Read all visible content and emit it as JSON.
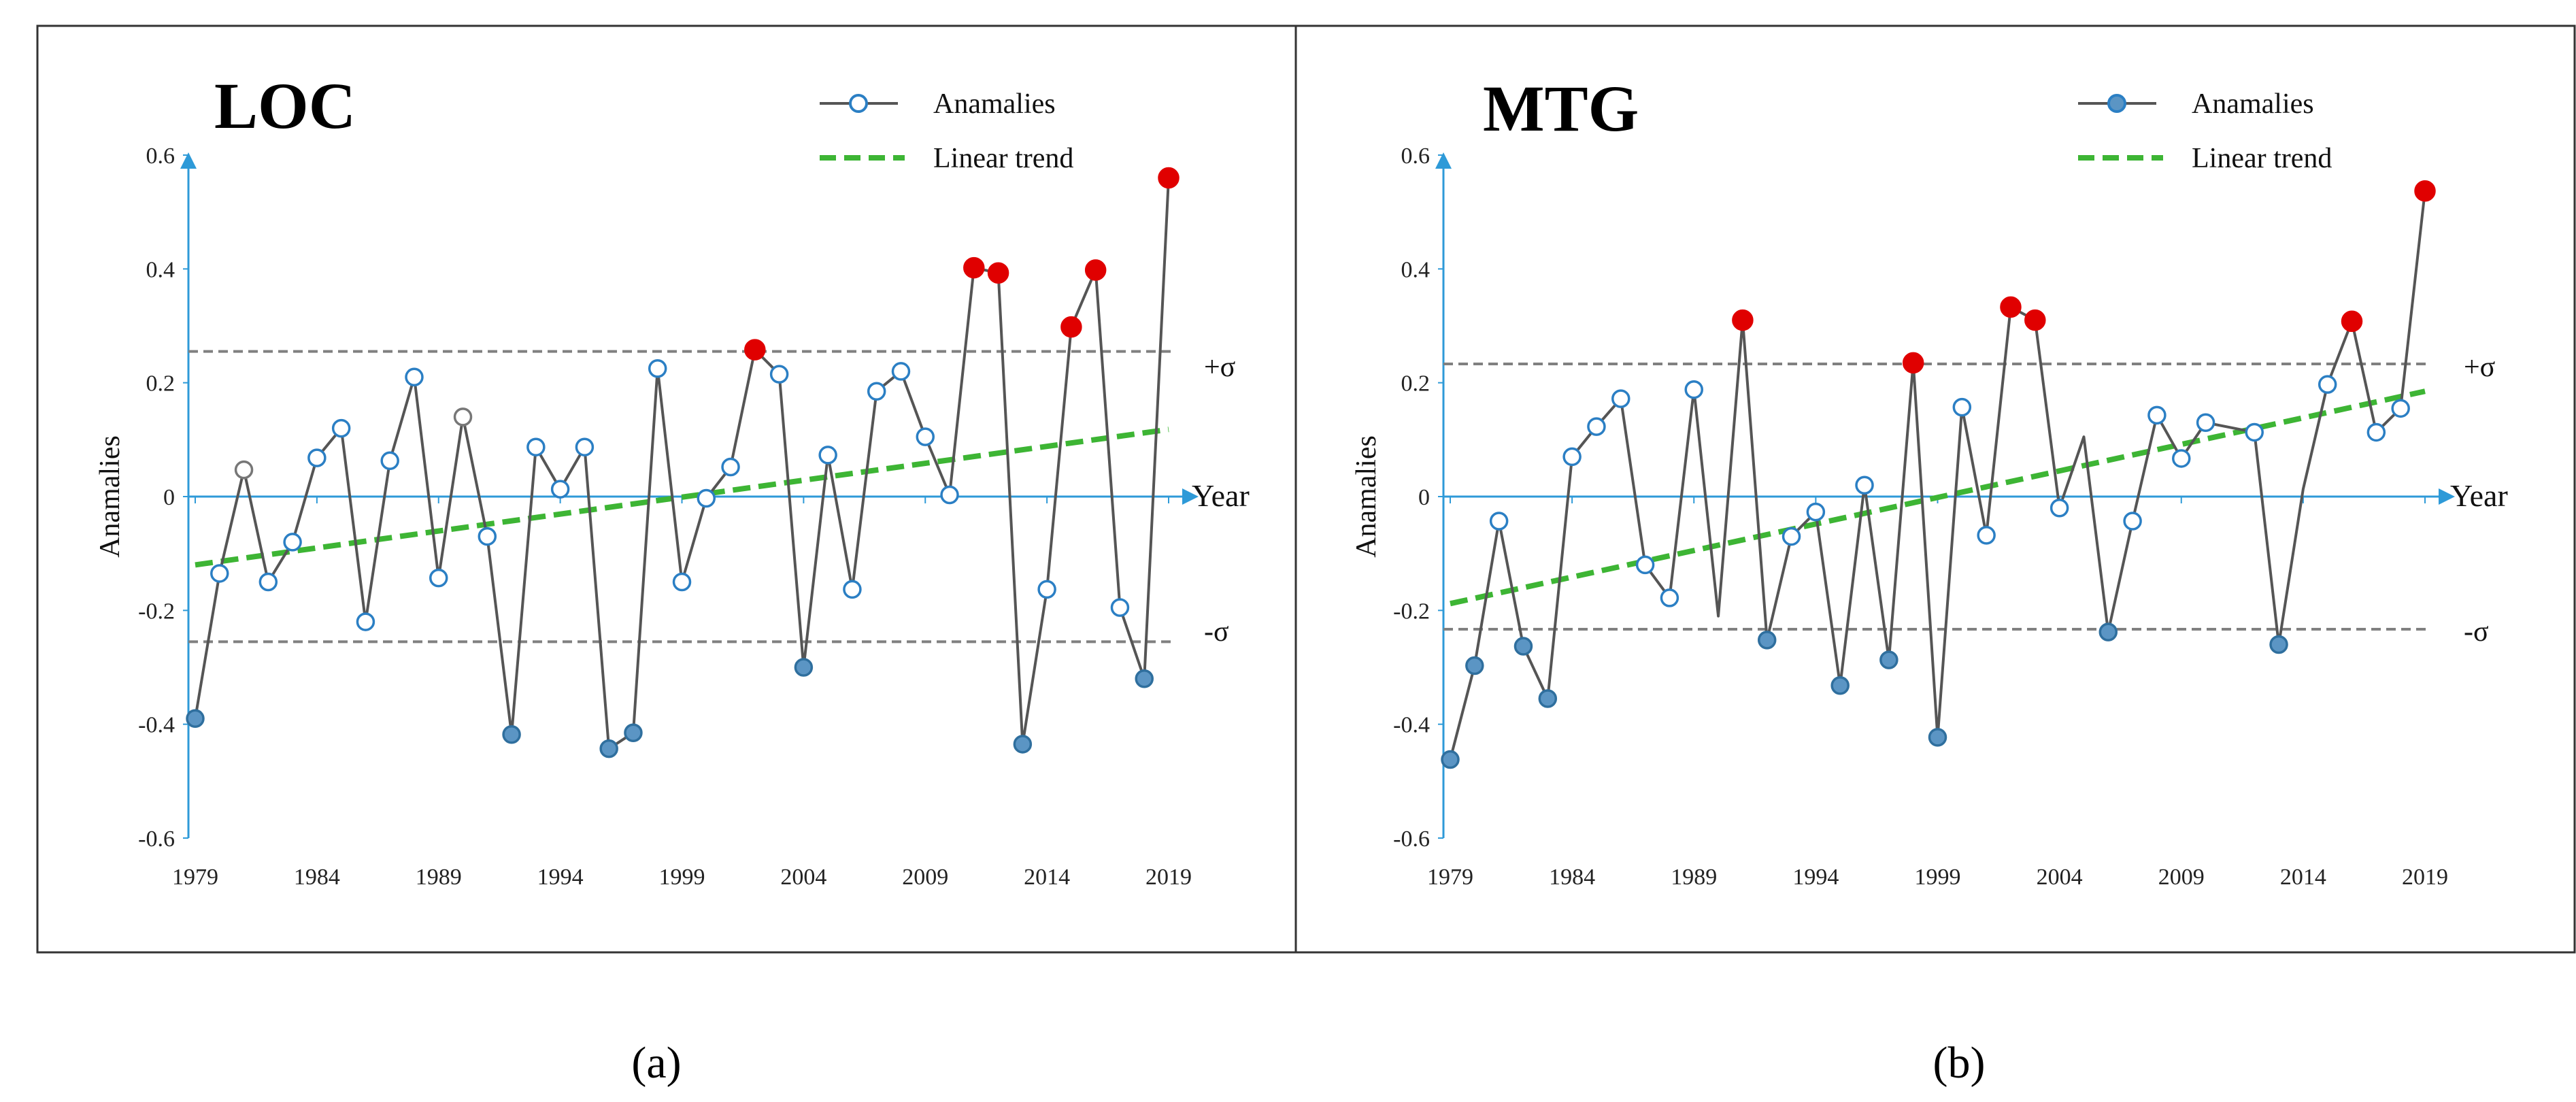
{
  "figure": {
    "panels": [
      "LOC",
      "MTG"
    ],
    "captions": [
      "(a)",
      "(b)"
    ]
  },
  "chart_data": [
    {
      "type": "line",
      "title": "LOC",
      "caption": "(a)",
      "xlabel": "Year",
      "ylabel": "Anamalies",
      "xlim": [
        1979,
        2019
      ],
      "ylim": [
        -0.6,
        0.6
      ],
      "xticks": [
        "1979",
        "1984",
        "1989",
        "1994",
        "1999",
        "2004",
        "2009",
        "2014",
        "2019"
      ],
      "yticks": [
        "0.6",
        "0.4",
        "0.2",
        "0",
        "-0.2",
        "-0.4",
        "-0.6"
      ],
      "legend": {
        "anomalies": "Anamalies",
        "trend": "Linear trend",
        "position": "top-right"
      },
      "sigma_labels": [
        "+σ",
        "-σ"
      ],
      "sigma": 0.255,
      "trend": {
        "start": [
          1979,
          -0.12
        ],
        "end": [
          2019,
          0.118
        ]
      },
      "series": [
        {
          "name": "Anamalies",
          "x": [
            1979,
            1980,
            1981,
            1982,
            1983,
            1984,
            1985,
            1986,
            1987,
            1988,
            1989,
            1990,
            1991,
            1992,
            1993,
            1994,
            1995,
            1996,
            1997,
            1998,
            1999,
            2000,
            2001,
            2002,
            2003,
            2004,
            2005,
            2006,
            2007,
            2008,
            2009,
            2010,
            2011,
            2012,
            2013,
            2014,
            2015,
            2016,
            2017,
            2018,
            2019
          ],
          "values": [
            -0.39,
            -0.135,
            0.047,
            -0.15,
            -0.08,
            0.068,
            0.12,
            -0.22,
            0.063,
            0.21,
            -0.143,
            0.14,
            -0.07,
            -0.418,
            0.087,
            0.013,
            0.087,
            -0.443,
            -0.415,
            0.225,
            -0.15,
            -0.003,
            0.052,
            0.258,
            0.215,
            -0.3,
            0.073,
            -0.163,
            0.185,
            0.22,
            0.105,
            0.003,
            0.402,
            0.393,
            -0.435,
            -0.163,
            0.298,
            0.398,
            -0.195,
            -0.32,
            0.56
          ],
          "marker_class": [
            "low",
            "mid",
            "grey",
            "mid",
            "mid",
            "mid",
            "mid",
            "mid",
            "mid",
            "mid",
            "mid",
            "grey",
            "mid",
            "low",
            "mid",
            "mid",
            "mid",
            "low",
            "low",
            "mid",
            "mid",
            "mid",
            "mid",
            "high",
            "mid",
            "low",
            "mid",
            "mid",
            "mid",
            "mid",
            "mid",
            "mid",
            "high",
            "high",
            "low",
            "mid",
            "high",
            "high",
            "mid",
            "low",
            "high"
          ]
        }
      ]
    },
    {
      "type": "line",
      "title": "MTG",
      "caption": "(b)",
      "xlabel": "Year",
      "ylabel": "Anamalies",
      "xlim": [
        1979,
        2019
      ],
      "ylim": [
        -0.6,
        0.6
      ],
      "xticks": [
        "1979",
        "1984",
        "1989",
        "1994",
        "1999",
        "2004",
        "2009",
        "2014",
        "2019"
      ],
      "yticks": [
        "0.6",
        "0.4",
        "0.2",
        "0",
        "-0.2",
        "-0.4",
        "-0.6"
      ],
      "legend": {
        "anomalies": "Anamalies",
        "trend": "Linear trend",
        "position": "top-right"
      },
      "sigma_labels": [
        "+σ",
        "-σ"
      ],
      "sigma": 0.233,
      "trend": {
        "start": [
          1979,
          -0.188
        ],
        "end": [
          2019,
          0.185
        ]
      },
      "series": [
        {
          "name": "Anamalies",
          "x": [
            1979,
            1980,
            1981,
            1982,
            1983,
            1984,
            1985,
            1986,
            1987,
            1988,
            1989,
            1990,
            1991,
            1992,
            1993,
            1994,
            1995,
            1996,
            1997,
            1998,
            1999,
            2000,
            2001,
            2002,
            2003,
            2004,
            2005,
            2006,
            2007,
            2008,
            2009,
            2010,
            2011,
            2012,
            2013,
            2014,
            2015,
            2016,
            2017,
            2018,
            2019
          ],
          "values": [
            -0.462,
            -0.297,
            -0.043,
            -0.263,
            -0.355,
            0.07,
            0.123,
            0.172,
            -0.12,
            -0.178,
            0.188,
            -0.21,
            0.31,
            -0.252,
            -0.07,
            -0.027,
            -0.332,
            0.02,
            -0.287,
            0.235,
            -0.423,
            0.157,
            -0.068,
            0.333,
            0.31,
            -0.02,
            0.105,
            -0.238,
            -0.043,
            0.143,
            0.067,
            0.13,
            null,
            0.113,
            -0.26,
            0.013,
            0.197,
            0.308,
            0.113,
            0.155,
            0.537
          ],
          "marker_class": [
            "low",
            "low",
            "mid",
            "low",
            "low",
            "mid",
            "mid",
            "mid",
            "mid",
            "mid",
            "mid",
            "none",
            "high",
            "low",
            "mid",
            "mid",
            "low",
            "mid",
            "low",
            "high",
            "low",
            "mid",
            "mid",
            "high",
            "high",
            "mid",
            "none",
            "low",
            "mid",
            "mid",
            "mid",
            "mid",
            "none",
            "mid",
            "low",
            "none",
            "mid",
            "high",
            "mid",
            "mid",
            "high"
          ]
        }
      ]
    }
  ],
  "colors": {
    "axis": "#2e9ad8",
    "line": "#555555",
    "trend": "#3db534",
    "sigma": "#808080",
    "marker_high": "#e00000",
    "marker_low": "#5b95c4",
    "marker_mid": "#2b7fc4",
    "marker_grey": "#777777",
    "frame": "#333333"
  }
}
